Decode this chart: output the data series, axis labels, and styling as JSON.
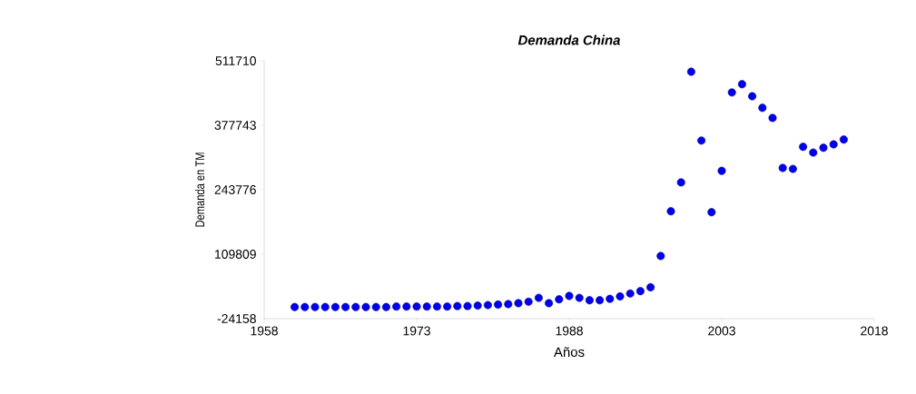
{
  "chart_data": {
    "type": "scatter",
    "title": "Demanda China",
    "xlabel": "Años",
    "ylabel": "Demanda en TM",
    "x": [
      1961,
      1962,
      1963,
      1964,
      1965,
      1966,
      1967,
      1968,
      1969,
      1970,
      1971,
      1972,
      1973,
      1974,
      1975,
      1976,
      1977,
      1978,
      1979,
      1980,
      1981,
      1982,
      1983,
      1984,
      1985,
      1986,
      1987,
      1988,
      1989,
      1990,
      1991,
      1992,
      1993,
      1994,
      1995,
      1996,
      1997,
      1998,
      1999,
      2000,
      2001,
      2002,
      2003,
      2004,
      2005,
      2006,
      2007,
      2008,
      2009,
      2010,
      2011,
      2012,
      2013,
      2014,
      2015
    ],
    "values": [
      0,
      0,
      0,
      0,
      0,
      0,
      0,
      0,
      0,
      0,
      1000,
      1000,
      1000,
      1000,
      1000,
      1000,
      2000,
      2000,
      3000,
      4000,
      5000,
      6000,
      8000,
      11000,
      19000,
      8000,
      16000,
      23000,
      19000,
      14000,
      14000,
      17000,
      22000,
      28000,
      33000,
      41000,
      106000,
      199000,
      259000,
      489000,
      346000,
      197000,
      283000,
      446000,
      463000,
      438000,
      414000,
      393000,
      289000,
      287000,
      333000,
      321000,
      331000,
      338000,
      348000
    ],
    "color": "#0000ee",
    "marker": "circle",
    "xlim": [
      1958,
      2018
    ],
    "xticks": [
      1958,
      1973,
      1988,
      2003,
      2018
    ],
    "ylim": [
      -24158,
      511710
    ],
    "yticks": [
      -24158,
      109809,
      243776,
      377743,
      511710
    ],
    "grid": false
  }
}
